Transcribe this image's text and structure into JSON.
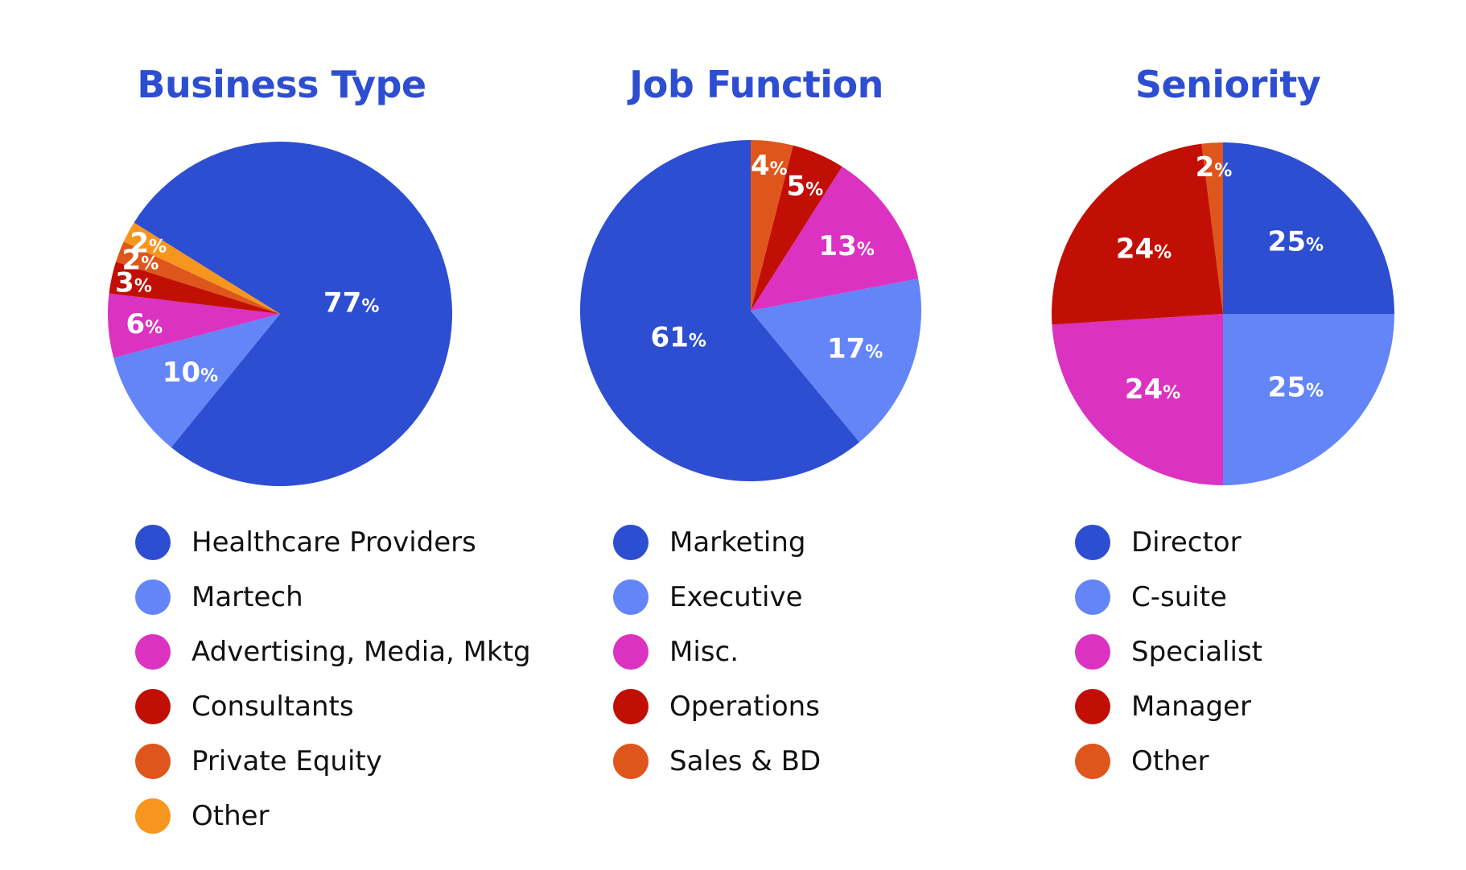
{
  "colors": {
    "title": "#2d4ed1"
  },
  "chart_data": [
    {
      "type": "pie",
      "title": "Business Type",
      "percent_suffix": "%",
      "slices": [
        {
          "label": "Healthcare Providers",
          "value": 77,
          "value_label": "77",
          "color": "#2d4ed1"
        },
        {
          "label": "Martech",
          "value": 10,
          "value_label": "10",
          "color": "#6385f7"
        },
        {
          "label": "Advertising, Media, Mktg",
          "value": 6,
          "value_label": "6",
          "color": "#db32c2"
        },
        {
          "label": "Consultants",
          "value": 3,
          "value_label": "3",
          "color": "#c20f06"
        },
        {
          "label": "Private Equity",
          "value": 2,
          "value_label": "2",
          "color": "#de561b"
        },
        {
          "label": "Other",
          "value": 2,
          "value_label": "2",
          "color": "#f7961f"
        }
      ]
    },
    {
      "type": "pie",
      "title": "Job Function",
      "percent_suffix": "%",
      "slices": [
        {
          "label": "Marketing",
          "value": 61,
          "value_label": "61",
          "color": "#2d4ed1"
        },
        {
          "label": "Executive",
          "value": 17,
          "value_label": "17",
          "color": "#6385f7"
        },
        {
          "label": "Misc.",
          "value": 13,
          "value_label": "13",
          "color": "#db32c2"
        },
        {
          "label": "Operations",
          "value": 5,
          "value_label": "5",
          "color": "#c20f06"
        },
        {
          "label": "Sales & BD",
          "value": 4,
          "value_label": "4",
          "color": "#de561b"
        }
      ]
    },
    {
      "type": "pie",
      "title": "Seniority",
      "percent_suffix": "%",
      "slices": [
        {
          "label": "Director",
          "value": 25,
          "value_label": "25",
          "color": "#2d4ed1"
        },
        {
          "label": "C-suite",
          "value": 25,
          "value_label": "25",
          "color": "#6385f7"
        },
        {
          "label": "Specialist",
          "value": 24,
          "value_label": "24",
          "color": "#db32c2"
        },
        {
          "label": "Manager",
          "value": 24,
          "value_label": "24",
          "color": "#c20f06"
        },
        {
          "label": "Other",
          "value": 2,
          "value_label": "2",
          "color": "#de561b"
        }
      ]
    }
  ]
}
